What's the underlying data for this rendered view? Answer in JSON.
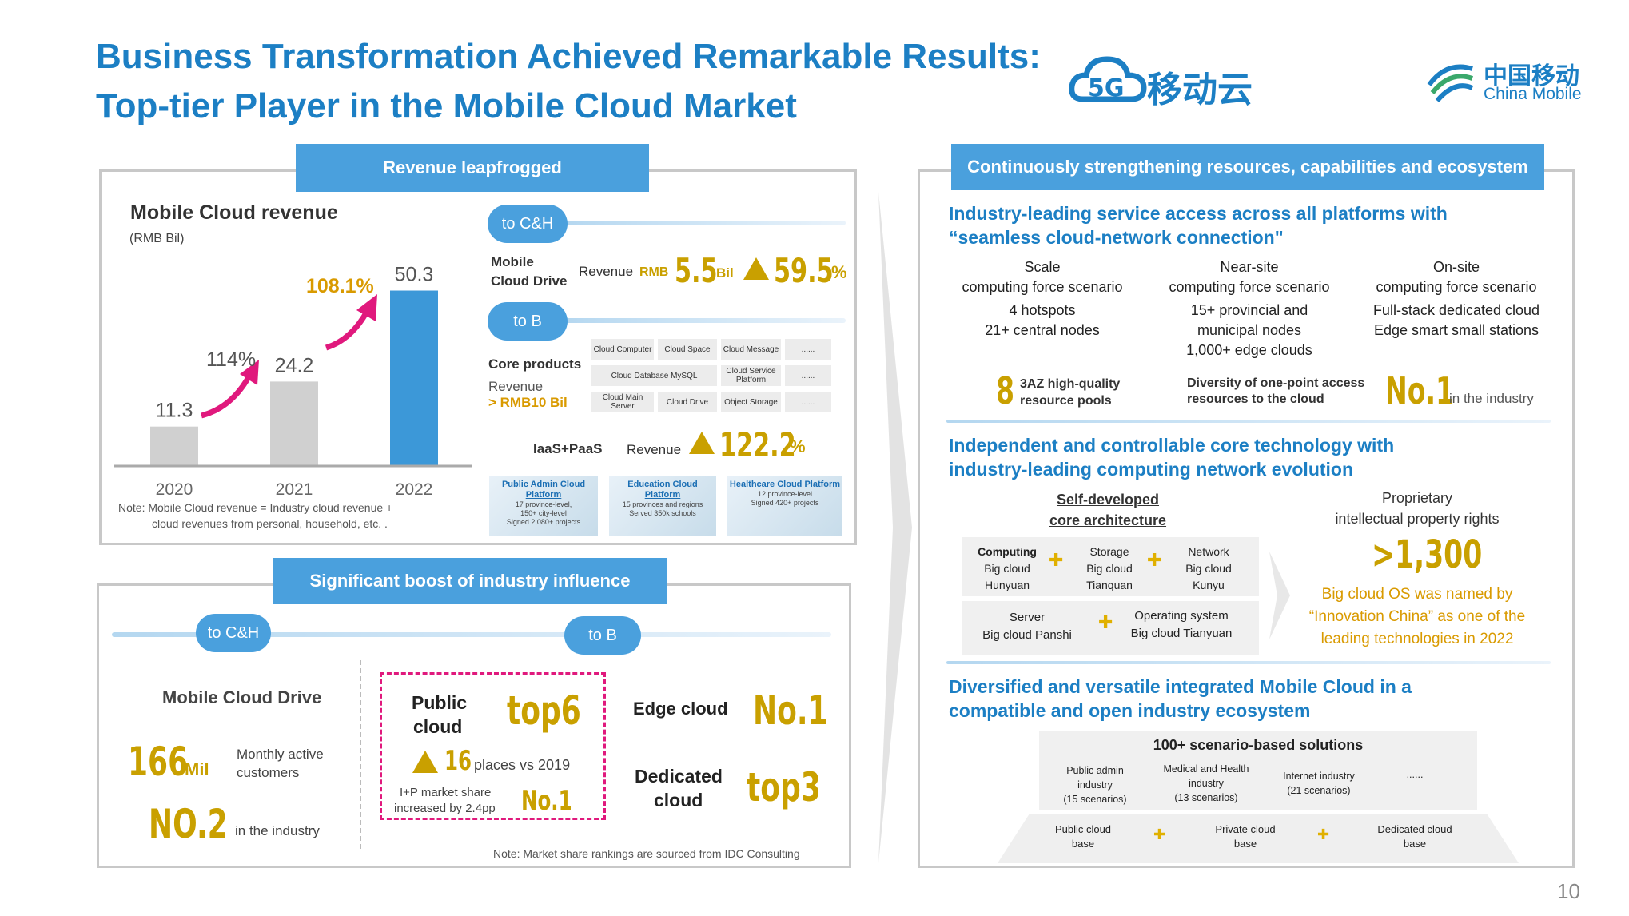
{
  "header": {
    "title_line1": "Business Transformation Achieved Remarkable Results:",
    "title_line2": "Top-tier Player in the Mobile Cloud Market",
    "logo_5g_text": "移动云",
    "logo_cm_cn": "中国移动",
    "logo_cm_en": "China Mobile"
  },
  "revenue_panel": {
    "tab": "Revenue leapfrogged",
    "chart_title": "Mobile Cloud revenue",
    "chart_unit": "(RMB Bil)",
    "growth_2021": "114%",
    "growth_2022": "108.1%",
    "note_line1": "Note: Mobile Cloud revenue = Industry cloud revenue +",
    "note_line2": "cloud revenues from personal, household, etc. .",
    "to_ch": "to C&H",
    "to_b": "to B",
    "drive_label_1": "Mobile",
    "drive_label_2": "Cloud Drive",
    "drive_revenue_label": "Revenue",
    "drive_rmb": "RMB",
    "drive_value": "5.5",
    "drive_unit": "Bil",
    "drive_growth": "59.5",
    "drive_growth_unit": "%",
    "core_products": "Core products",
    "core_revenue": "Revenue",
    "core_revenue_value": "> RMB10 Bil",
    "products_grid": [
      [
        "Cloud Computer",
        "Cloud Space",
        "Cloud Message",
        "......"
      ],
      [
        "Cloud Database MySQL",
        "Cloud Service Platform",
        "......"
      ],
      [
        "Cloud Main Server",
        "Cloud Drive",
        "Object Storage",
        "......"
      ]
    ],
    "iaas_label": "IaaS+PaaS",
    "iaas_revenue_label": "Revenue",
    "iaas_growth": "122.2",
    "iaas_growth_unit": "%",
    "thumbs": [
      {
        "title": "Public Admin Cloud Platform",
        "line1": "17 province-level,",
        "line2": "150+ city-level",
        "line3": "Signed 2,080+ projects"
      },
      {
        "title": "Education Cloud Platform",
        "line1": "15 provinces and regions",
        "line2": "Served 350k schools",
        "line3": ""
      },
      {
        "title": "Healthcare Cloud Platform",
        "line1": "12 province-level",
        "line2": "Signed 420+ projects",
        "line3": ""
      }
    ]
  },
  "chart_data": {
    "type": "bar",
    "title": "Mobile Cloud revenue",
    "ylabel": "(RMB Bil)",
    "categories": [
      "2020",
      "2021",
      "2022"
    ],
    "values": [
      11.3,
      24.2,
      50.3
    ],
    "value_labels": [
      "11.3",
      "24.2",
      "50.3"
    ],
    "ylim": [
      0,
      55
    ],
    "colors": [
      "#d0d0d0",
      "#d0d0d0",
      "#3c98d8"
    ],
    "annotations": [
      "114%",
      "108.1%"
    ]
  },
  "influence_panel": {
    "tab": "Significant boost of industry influence",
    "to_ch": "to C&H",
    "to_b": "to B",
    "drive_title": "Mobile Cloud Drive",
    "mac_value": "166",
    "mac_unit": "Mil",
    "mac_label_1": "Monthly active",
    "mac_label_2": "customers",
    "rank_value": "NO.2",
    "rank_label": "in the industry",
    "public_cloud_1": "Public",
    "public_cloud_2": "cloud",
    "public_rank": "top6",
    "places_value": "16",
    "places_label": "places vs 2019",
    "ip_label_1": "I+P market share",
    "ip_label_2": "increased by 2.4pp",
    "ip_rank": "No.1",
    "edge_label": "Edge cloud",
    "edge_rank": "No.1",
    "dedicated_1": "Dedicated",
    "dedicated_2": "cloud",
    "dedicated_rank": "top3",
    "note": "Note: Market share rankings are sourced from IDC Consulting"
  },
  "right_panel": {
    "tab": "Continuously strengthening resources, capabilities and ecosystem",
    "sec1_line1": "Industry-leading service access across all platforms with",
    "sec1_line2": "“seamless cloud-network connection\"",
    "scenarios": [
      {
        "h1": "Scale",
        "h2": "computing force scenario",
        "l1": "4 hotspots",
        "l2": "21+ central nodes",
        "l3": ""
      },
      {
        "h1": "Near-site",
        "h2": "computing force scenario",
        "l1": "15+ provincial and",
        "l2": "municipal nodes",
        "l3": "1,000+ edge clouds"
      },
      {
        "h1": "On-site",
        "h2": "computing force scenario",
        "l1": "Full-stack dedicated cloud",
        "l2": "Edge smart small stations",
        "l3": ""
      }
    ],
    "pool_value": "8",
    "pool_label_1": "3AZ high-quality",
    "pool_label_2": "resource pools",
    "diversity_1": "Diversity of one-point access",
    "diversity_2": "resources to the cloud",
    "diversity_rank": "No.1",
    "diversity_suffix": "in the industry",
    "sec2_line1": "Independent and controllable core technology with",
    "sec2_line2": "industry-leading computing network evolution",
    "self_dev_1": "Self-developed",
    "self_dev_2": "core architecture",
    "arch": [
      {
        "a": "Computing",
        "b": "Big cloud",
        "c": "Hunyuan"
      },
      {
        "a": "Storage",
        "b": "Big cloud",
        "c": "Tianquan"
      },
      {
        "a": "Network",
        "b": "Big cloud",
        "c": "Kunyu"
      }
    ],
    "arch2": [
      {
        "a": "Server",
        "b": "Big cloud Panshi"
      },
      {
        "a": "Operating system",
        "b": "Big cloud Tianyuan"
      }
    ],
    "ip_title_1": "Proprietary",
    "ip_title_2": "intellectual property rights",
    "ip_value": ">1,300",
    "ip_note_1": "Big cloud OS was named by",
    "ip_note_2": "“Innovation China”  as one of the",
    "ip_note_3": "leading technologies in 2022",
    "sec3_line1": "Diversified and versatile integrated Mobile Cloud in a",
    "sec3_line2": "compatible and open industry ecosystem",
    "solutions_title": "100+ scenario-based solutions",
    "solutions": [
      {
        "l1": "Public admin",
        "l2": "industry",
        "l3": "(15 scenarios)"
      },
      {
        "l1": "Medical and Health",
        "l2": "industry",
        "l3": "(13 scenarios)"
      },
      {
        "l1": "Internet industry",
        "l2": "(21 scenarios)",
        "l3": ""
      },
      {
        "l1": "......",
        "l2": "",
        "l3": ""
      }
    ],
    "bases": [
      {
        "l1": "Public cloud",
        "l2": "base"
      },
      {
        "l1": "Private cloud",
        "l2": "base"
      },
      {
        "l1": "Dedicated cloud",
        "l2": "base"
      }
    ]
  },
  "page_number": "10",
  "colors": {
    "accent_blue": "#1c7fc4",
    "tab_blue": "#4aa0dd",
    "gold": "#c9a000",
    "arrow_pink": "#e0197d",
    "bar_grey": "#d0d0d0",
    "bar_blue": "#3c98d8"
  }
}
